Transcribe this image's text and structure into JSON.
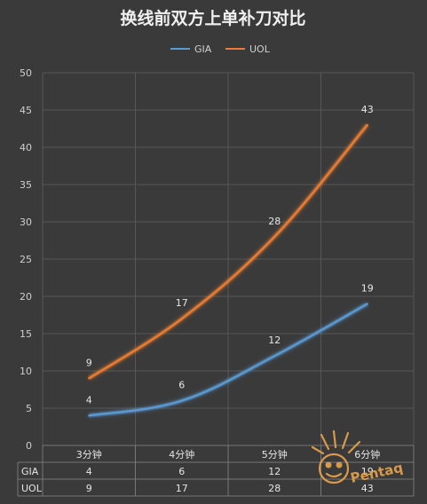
{
  "chart_data": {
    "type": "line",
    "title": "换线前双方上单补刀对比",
    "categories": [
      "3分钟",
      "4分钟",
      "5分钟",
      "6分钟"
    ],
    "series": [
      {
        "name": "GIA",
        "values": [
          4,
          6,
          12,
          19
        ],
        "color": "#5b9bd5"
      },
      {
        "name": "UOL",
        "values": [
          9,
          17,
          28,
          43
        ],
        "color": "#ed7d31"
      }
    ],
    "ylim": [
      0,
      50
    ],
    "yticks": [
      0,
      5,
      10,
      15,
      20,
      25,
      30,
      35,
      40,
      45,
      50
    ],
    "grid": true,
    "legend": "top",
    "data_table": true
  },
  "watermark": {
    "text": "Pentaq"
  }
}
